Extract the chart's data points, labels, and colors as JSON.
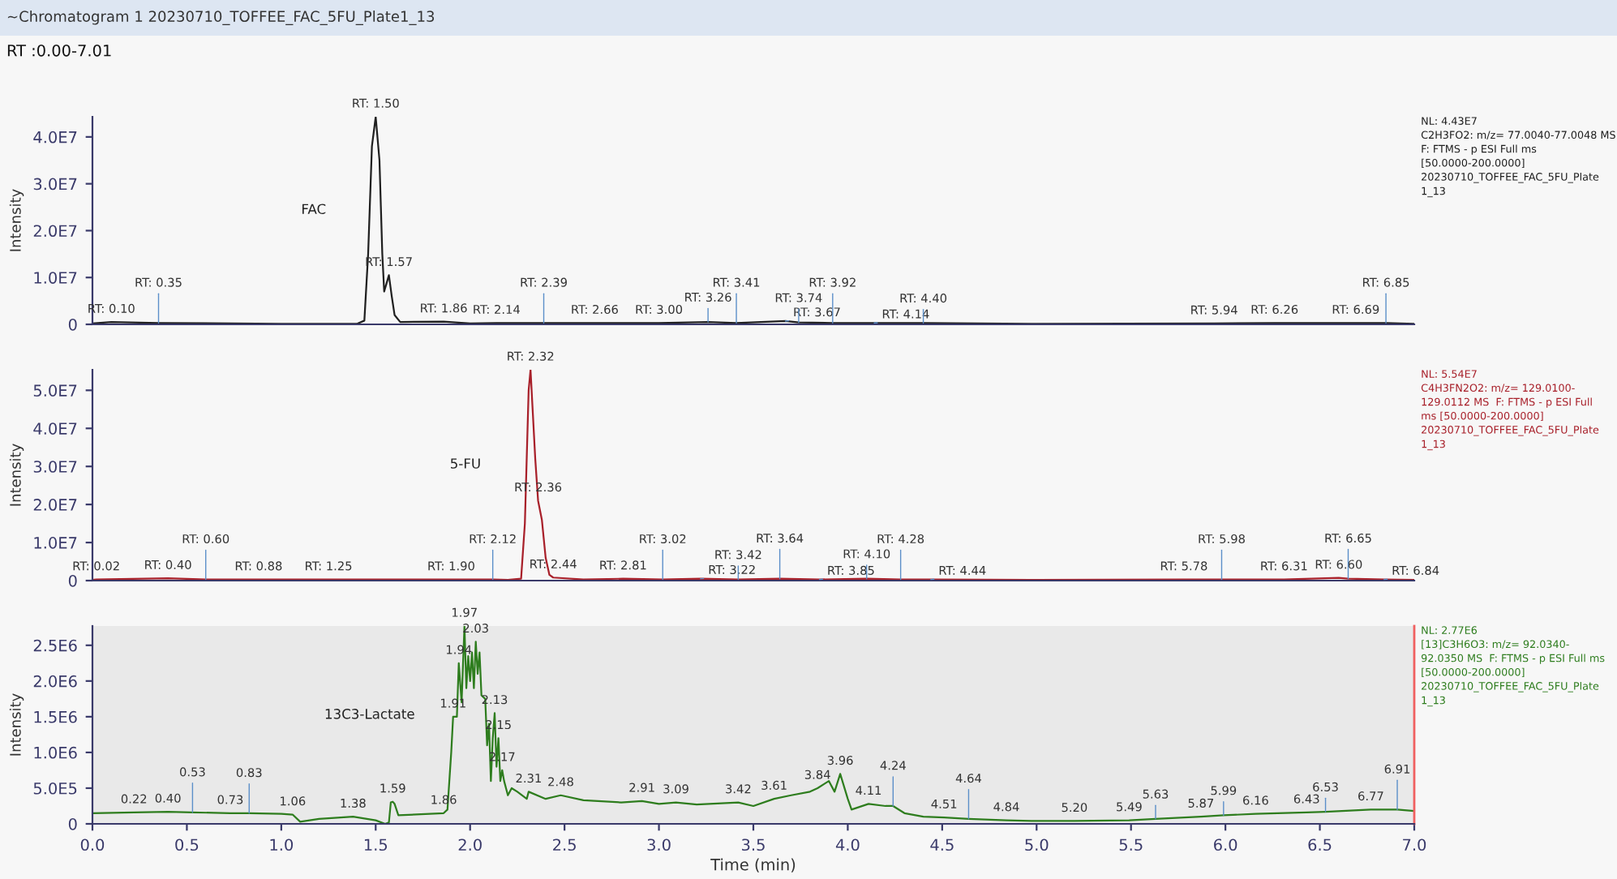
{
  "chart_data": [
    {
      "type": "line",
      "title": "~Chromatogram 1 20230710_TOFFEE_FAC_5FU_Plate1_13",
      "subtitle": "RT :0.00-7.01",
      "ylabel": "Intensity",
      "tick_labels": "y",
      "x": [
        0,
        0.1,
        0.35,
        1.0,
        1.4,
        1.44,
        1.46,
        1.48,
        1.5,
        1.52,
        1.535,
        1.545,
        1.57,
        1.585,
        1.6,
        1.63,
        1.86,
        2.0,
        2.14,
        2.39,
        2.66,
        3.0,
        3.26,
        3.41,
        3.67,
        3.74,
        3.92,
        4.14,
        4.4,
        5.0,
        5.94,
        6.26,
        6.69,
        6.85,
        7.0
      ],
      "series": [
        {
          "color": "#202020",
          "values": [
            200000,
            500000,
            300000,
            100000,
            100000,
            800000,
            15000000,
            38000000,
            44300000,
            35000000,
            15000000,
            7000000,
            10500000,
            6000000,
            2000000,
            500000,
            600000,
            200000,
            300000,
            300000,
            300000,
            300000,
            500000,
            300000,
            700000,
            400000,
            300000,
            300000,
            300000,
            100000,
            200000,
            300000,
            300000,
            300000,
            100000
          ]
        }
      ],
      "xlim": [
        0,
        7
      ],
      "ylim": [
        0,
        44300000
      ],
      "yticks": [
        0,
        {
          "value": 10000000,
          "label": "1.0E7"
        },
        {
          "value": 20000000,
          "label": "2.0E7"
        },
        {
          "value": 30000000,
          "label": "3.0E7"
        },
        {
          "value": 40000000,
          "label": "4.0E7"
        }
      ],
      "annotations": [
        {
          "text": "RT: 1.50",
          "x": 1.5,
          "y": 44300000
        },
        {
          "text": "RT: 1.57",
          "x": 1.57,
          "y": 10500000
        },
        {
          "text": "RT: 0.10",
          "x": 0.1,
          "y": 500000
        },
        {
          "text": "RT: 0.35",
          "x": 0.35,
          "y": 300000
        },
        {
          "text": "RT: 1.86",
          "x": 1.86,
          "y": 600000
        },
        {
          "text": "RT: 2.14",
          "x": 2.14,
          "y": 300000
        },
        {
          "text": "RT: 2.39",
          "x": 2.39,
          "y": 300000
        },
        {
          "text": "RT: 2.66",
          "x": 2.66,
          "y": 300000
        },
        {
          "text": "RT: 3.00",
          "x": 3.0,
          "y": 300000
        },
        {
          "text": "RT: 3.26",
          "x": 3.26,
          "y": 500000
        },
        {
          "text": "RT: 3.41",
          "x": 3.41,
          "y": 300000
        },
        {
          "text": "RT: 3.67",
          "x": 3.67,
          "y": 700000
        },
        {
          "text": "RT: 3.74",
          "x": 3.74,
          "y": 400000
        },
        {
          "text": "RT: 3.92",
          "x": 3.92,
          "y": 300000
        },
        {
          "text": "RT: 4.14",
          "x": 4.14,
          "y": 300000
        },
        {
          "text": "RT: 4.40",
          "x": 4.4,
          "y": 300000
        },
        {
          "text": "RT: 5.94",
          "x": 5.94,
          "y": 200000
        },
        {
          "text": "RT: 6.26",
          "x": 6.26,
          "y": 300000
        },
        {
          "text": "RT: 6.69",
          "x": 6.69,
          "y": 300000
        },
        {
          "text": "RT: 6.85",
          "x": 6.85,
          "y": 300000
        },
        "FAC",
        "NL: 4.43E7\nC2H3FO2: m/z= 77.0040-77.0048 MS\nF: FTMS - p ESI Full ms\n[50.0000-200.0000]\n20230710_TOFFEE_FAC_5FU_Plate\n1_13"
      ]
    },
    {
      "type": "line",
      "ylabel": "Intensity",
      "tick_labels": "y",
      "x": [
        0,
        0.02,
        0.4,
        0.6,
        0.88,
        1.25,
        1.9,
        2.12,
        2.2,
        2.27,
        2.29,
        2.31,
        2.32,
        2.33,
        2.345,
        2.36,
        2.38,
        2.4,
        2.42,
        2.44,
        2.6,
        2.81,
        3.02,
        3.22,
        3.42,
        3.64,
        3.85,
        4.1,
        4.28,
        4.44,
        5.0,
        5.78,
        5.98,
        6.31,
        6.6,
        6.65,
        6.84,
        7.0
      ],
      "series": [
        {
          "color": "#a8202a",
          "values": [
            200000,
            300000,
            600000,
            300000,
            300000,
            300000,
            300000,
            300000,
            200000,
            500000,
            15000000,
            50000000,
            55400000,
            46000000,
            32000000,
            21000000,
            16000000,
            6000000,
            1500000,
            800000,
            300000,
            500000,
            300000,
            500000,
            300000,
            500000,
            300000,
            500000,
            300000,
            300000,
            200000,
            300000,
            300000,
            300000,
            700000,
            500000,
            300000,
            200000
          ]
        }
      ],
      "xlim": [
        0,
        7
      ],
      "ylim": [
        0,
        55400000
      ],
      "yticks": [
        0,
        {
          "value": 10000000,
          "label": "1.0E7"
        },
        {
          "value": 20000000,
          "label": "2.0E7"
        },
        {
          "value": 30000000,
          "label": "3.0E7"
        },
        {
          "value": 40000000,
          "label": "4.0E7"
        },
        {
          "value": 50000000,
          "label": "5.0E7"
        }
      ],
      "annotations": [
        {
          "text": "RT: 2.32",
          "x": 2.32,
          "y": 55400000
        },
        {
          "text": "RT: 2.36",
          "x": 2.36,
          "y": 21000000
        },
        {
          "text": "RT: 0.02",
          "x": 0.02,
          "y": 300000
        },
        {
          "text": "RT: 0.40",
          "x": 0.4,
          "y": 600000
        },
        {
          "text": "RT: 0.60",
          "x": 0.6,
          "y": 300000
        },
        {
          "text": "RT: 0.88",
          "x": 0.88,
          "y": 300000
        },
        {
          "text": "RT: 1.25",
          "x": 1.25,
          "y": 300000
        },
        {
          "text": "RT: 1.90",
          "x": 1.9,
          "y": 300000
        },
        {
          "text": "RT: 2.12",
          "x": 2.12,
          "y": 300000
        },
        {
          "text": "RT: 2.44",
          "x": 2.44,
          "y": 800000
        },
        {
          "text": "RT: 2.81",
          "x": 2.81,
          "y": 500000
        },
        {
          "text": "RT: 3.02",
          "x": 3.02,
          "y": 300000
        },
        {
          "text": "RT: 3.22",
          "x": 3.22,
          "y": 500000
        },
        {
          "text": "RT: 3.42",
          "x": 3.42,
          "y": 300000
        },
        {
          "text": "RT: 3.64",
          "x": 3.64,
          "y": 500000
        },
        {
          "text": "RT: 3.85",
          "x": 3.85,
          "y": 300000
        },
        {
          "text": "RT: 4.10",
          "x": 4.1,
          "y": 500000
        },
        {
          "text": "RT: 4.28",
          "x": 4.28,
          "y": 300000
        },
        {
          "text": "RT: 4.44",
          "x": 4.44,
          "y": 300000
        },
        {
          "text": "RT: 5.78",
          "x": 5.78,
          "y": 300000
        },
        {
          "text": "RT: 5.98",
          "x": 5.98,
          "y": 300000
        },
        {
          "text": "RT: 6.31",
          "x": 6.31,
          "y": 300000
        },
        {
          "text": "RT: 6.60",
          "x": 6.6,
          "y": 700000
        },
        {
          "text": "RT: 6.65",
          "x": 6.65,
          "y": 500000
        },
        {
          "text": "RT: 6.84",
          "x": 6.84,
          "y": 300000
        },
        "5-FU",
        "NL: 5.54E7\nC4H3FN2O2: m/z= 129.0100-\n129.0112 MS  F: FTMS - p ESI Full\nms [50.0000-200.0000]\n20230710_TOFFEE_FAC_5FU_Plate\n1_13"
      ]
    },
    {
      "type": "line",
      "ylabel": "Intensity",
      "xlabel": "Time (min)",
      "x": [
        0,
        0.22,
        0.4,
        0.53,
        0.73,
        0.83,
        1.0,
        1.06,
        1.1,
        1.2,
        1.38,
        1.5,
        1.55,
        1.57,
        1.58,
        1.59,
        1.6,
        1.62,
        1.86,
        1.88,
        1.9,
        1.91,
        1.93,
        1.94,
        1.955,
        1.97,
        1.98,
        1.99,
        2.0,
        2.01,
        2.02,
        2.03,
        2.04,
        2.05,
        2.06,
        2.08,
        2.09,
        2.1,
        2.11,
        2.12,
        2.13,
        2.14,
        2.15,
        2.16,
        2.17,
        2.18,
        2.2,
        2.22,
        2.25,
        2.3,
        2.31,
        2.4,
        2.48,
        2.6,
        2.8,
        2.91,
        3.0,
        3.09,
        3.2,
        3.42,
        3.5,
        3.61,
        3.7,
        3.8,
        3.84,
        3.9,
        3.93,
        3.96,
        4.0,
        4.02,
        4.11,
        4.2,
        4.24,
        4.3,
        4.4,
        4.51,
        4.64,
        4.84,
        5.0,
        5.2,
        5.49,
        5.63,
        5.87,
        5.99,
        6.16,
        6.43,
        6.53,
        6.77,
        6.91,
        7.0
      ],
      "series": [
        {
          "color": "#2e7d1e",
          "values": [
            150000,
            160000,
            170000,
            160000,
            150000,
            150000,
            140000,
            130000,
            30000,
            70000,
            100000,
            50000,
            0,
            20000,
            300000,
            310000,
            280000,
            120000,
            150000,
            200000,
            1000000,
            1500000,
            1500000,
            2250000,
            1700000,
            2770000,
            1900000,
            2350000,
            2000000,
            2400000,
            1900000,
            2550000,
            2100000,
            2400000,
            1800000,
            1750000,
            1100000,
            1400000,
            600000,
            1200000,
            1550000,
            800000,
            1200000,
            600000,
            750000,
            600000,
            400000,
            500000,
            450000,
            350000,
            450000,
            350000,
            400000,
            330000,
            300000,
            320000,
            280000,
            300000,
            270000,
            300000,
            250000,
            350000,
            400000,
            450000,
            500000,
            600000,
            450000,
            700000,
            350000,
            200000,
            280000,
            250000,
            250000,
            150000,
            100000,
            90000,
            70000,
            50000,
            40000,
            40000,
            50000,
            70000,
            100000,
            120000,
            140000,
            160000,
            170000,
            200000,
            200000,
            180000
          ]
        }
      ],
      "xlim": [
        0,
        7
      ],
      "ylim": [
        0,
        2770000
      ],
      "xticks": [
        {
          "value": 0,
          "label": "0.0"
        },
        {
          "value": 0.5,
          "label": "0.5"
        },
        {
          "value": 1,
          "label": "1.0"
        },
        {
          "value": 1.5,
          "label": "1.5"
        },
        {
          "value": 2,
          "label": "2.0"
        },
        {
          "value": 2.5,
          "label": "2.5"
        },
        {
          "value": 3,
          "label": "3.0"
        },
        {
          "value": 3.5,
          "label": "3.5"
        },
        {
          "value": 4,
          "label": "4.0"
        },
        {
          "value": 4.5,
          "label": "4.5"
        },
        {
          "value": 5,
          "label": "5.0"
        },
        {
          "value": 5.5,
          "label": "5.5"
        },
        {
          "value": 6,
          "label": "6.0"
        },
        {
          "value": 6.5,
          "label": "6.5"
        },
        {
          "value": 7,
          "label": "7.0"
        }
      ],
      "yticks": [
        0,
        {
          "value": 500000,
          "label": "5.0E5"
        },
        {
          "value": 1000000,
          "label": "1.0E6"
        },
        {
          "value": 1500000,
          "label": "1.5E6"
        },
        {
          "value": 2000000,
          "label": "2.0E6"
        },
        {
          "value": 2500000,
          "label": "2.5E6"
        }
      ],
      "ref_lines": [
        {
          "axis": "x",
          "value": 7,
          "color": "#f06060"
        }
      ],
      "annotations": [
        {
          "text": "1.97",
          "x": 1.97,
          "y": 2770000
        },
        {
          "text": "2.03",
          "x": 2.03,
          "y": 2550000
        },
        {
          "text": "1.94",
          "x": 1.94,
          "y": 2250000
        },
        {
          "text": "2.13",
          "x": 2.13,
          "y": 1550000
        },
        {
          "text": "1.91",
          "x": 1.91,
          "y": 1500000
        },
        {
          "text": "2.15",
          "x": 2.15,
          "y": 1200000
        },
        {
          "text": "2.17",
          "x": 2.17,
          "y": 750000
        },
        {
          "text": "3.96",
          "x": 3.96,
          "y": 700000
        },
        {
          "text": "2.31",
          "x": 2.31,
          "y": 450000
        },
        {
          "text": "2.48",
          "x": 2.48,
          "y": 400000
        },
        {
          "text": "3.84",
          "x": 3.84,
          "y": 500000
        },
        {
          "text": "3.61",
          "x": 3.61,
          "y": 350000
        },
        {
          "text": "3.42",
          "x": 3.42,
          "y": 300000
        },
        {
          "text": "3.09",
          "x": 3.09,
          "y": 300000
        },
        {
          "text": "2.91",
          "x": 2.91,
          "y": 320000
        },
        {
          "text": "1.59",
          "x": 1.59,
          "y": 310000
        },
        {
          "text": "1.86",
          "x": 1.86,
          "y": 150000
        },
        {
          "text": "1.38",
          "x": 1.38,
          "y": 100000
        },
        {
          "text": "1.06",
          "x": 1.06,
          "y": 130000
        },
        {
          "text": "0.22",
          "x": 0.22,
          "y": 160000
        },
        {
          "text": "0.40",
          "x": 0.4,
          "y": 170000
        },
        {
          "text": "0.53",
          "x": 0.53,
          "y": 160000
        },
        {
          "text": "0.73",
          "x": 0.73,
          "y": 150000
        },
        {
          "text": "0.83",
          "x": 0.83,
          "y": 150000
        },
        {
          "text": "4.11",
          "x": 4.11,
          "y": 280000
        },
        {
          "text": "4.24",
          "x": 4.24,
          "y": 250000
        },
        {
          "text": "4.51",
          "x": 4.51,
          "y": 90000
        },
        {
          "text": "4.64",
          "x": 4.64,
          "y": 70000
        },
        {
          "text": "4.84",
          "x": 4.84,
          "y": 50000
        },
        {
          "text": "5.20",
          "x": 5.2,
          "y": 40000
        },
        {
          "text": "5.49",
          "x": 5.49,
          "y": 50000
        },
        {
          "text": "5.63",
          "x": 5.63,
          "y": 70000
        },
        {
          "text": "5.87",
          "x": 5.87,
          "y": 100000
        },
        {
          "text": "5.99",
          "x": 5.99,
          "y": 120000
        },
        {
          "text": "6.16",
          "x": 6.16,
          "y": 140000
        },
        {
          "text": "6.43",
          "x": 6.43,
          "y": 160000
        },
        {
          "text": "6.53",
          "x": 6.53,
          "y": 170000
        },
        {
          "text": "6.77",
          "x": 6.77,
          "y": 200000
        },
        {
          "text": "6.91",
          "x": 6.91,
          "y": 200000
        },
        "13C3-Lactate",
        "NL: 2.77E6\n[13]C3H6O3: m/z= 92.0340-\n92.0350 MS  F: FTMS - p ESI Full ms\n[50.0000-200.0000]\n20230710_TOFFEE_FAC_5FU_Plate\n1_13"
      ]
    }
  ]
}
